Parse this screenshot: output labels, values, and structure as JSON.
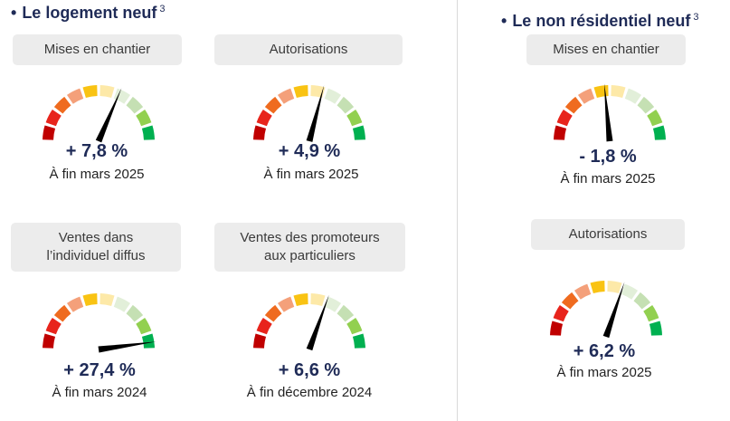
{
  "sections": {
    "logement": {
      "bullet": "•",
      "title": "Le logement neuf",
      "sup": "3"
    },
    "non_residentiel": {
      "bullet": "•",
      "title": "Le non résidentiel neuf",
      "sup": "3"
    }
  },
  "gauge_colors": [
    "#c00000",
    "#e8241c",
    "#ef6b1f",
    "#f4a07a",
    "#f9c313",
    "#fde9a8",
    "#e2efd9",
    "#c5e0b3",
    "#92d050",
    "#00b050"
  ],
  "gauges": [
    {
      "id": "lg-mises",
      "label": "Mises en chantier",
      "value_text": "+ 7,8 %",
      "date_text": "À fin mars 2025",
      "value": 7.8
    },
    {
      "id": "lg-autorisations",
      "label": "Autorisations",
      "value_text": "+ 4,9 %",
      "date_text": "À fin mars 2025",
      "value": 4.9
    },
    {
      "id": "lg-ventes-diffus",
      "label": "Ventes dans\nl’individuel diffus",
      "value_text": "+ 27,4 %",
      "date_text": "À fin mars 2024",
      "value": 27.4
    },
    {
      "id": "lg-ventes-promoteurs",
      "label": "Ventes des promoteurs\naux particuliers",
      "value_text": "+ 6,6 %",
      "date_text": "À fin décembre 2024",
      "value": 6.6
    },
    {
      "id": "nr-mises",
      "label": "Mises en chantier",
      "value_text": "- 1,8 %",
      "date_text": "À fin mars 2025",
      "value": -1.8
    },
    {
      "id": "nr-autorisations",
      "label": "Autorisations",
      "value_text": "+ 6,2 %",
      "date_text": "À fin mars 2025",
      "value": 6.2
    }
  ]
}
